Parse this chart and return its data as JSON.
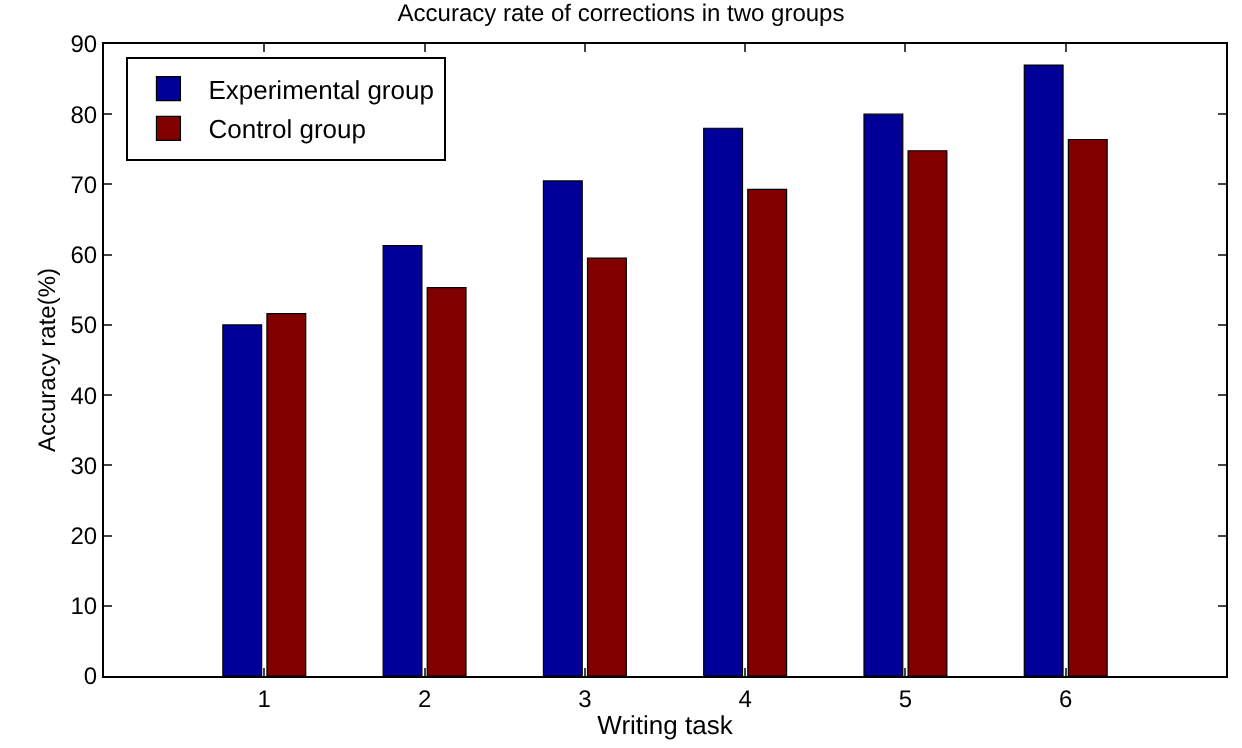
{
  "chart_data": {
    "type": "bar",
    "title": "Accuracy rate of corrections in two groups",
    "xlabel": "Writing task",
    "ylabel": "Accuracy rate(%)",
    "x": [
      1,
      2,
      3,
      4,
      5,
      6
    ],
    "series": [
      {
        "name": "Experimental group",
        "color": "#000099",
        "values": [
          50,
          61.3,
          70.5,
          78,
          80,
          87
        ]
      },
      {
        "name": "Control group",
        "color": "#800000",
        "values": [
          51.6,
          55.3,
          59.5,
          69.3,
          74.8,
          76.4
        ]
      }
    ],
    "xlim": [
      0,
      7
    ],
    "xticks": [
      1,
      2,
      3,
      4,
      5,
      6
    ],
    "ylim": [
      0,
      90
    ],
    "yticks": [
      0,
      10,
      20,
      30,
      40,
      50,
      60,
      70,
      80,
      90
    ],
    "grid": false,
    "legend": "top left"
  }
}
